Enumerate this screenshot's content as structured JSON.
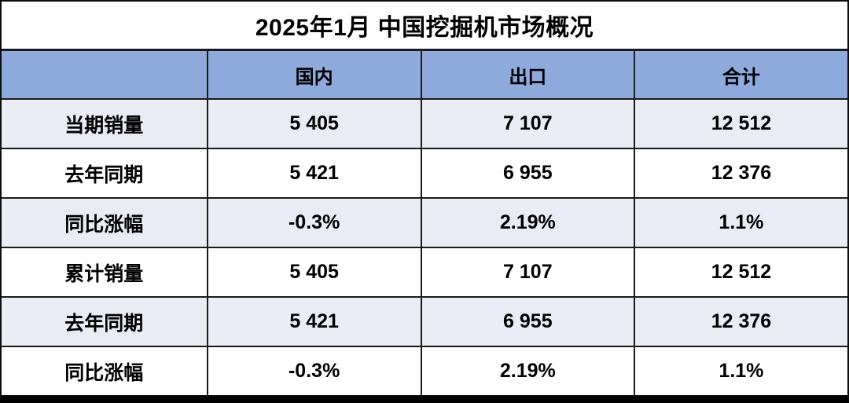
{
  "title": "2025年1月 中国挖掘机市场概况",
  "colors": {
    "header_bg": "#8EA9DB",
    "alt_row_bg": "#E9EBF5",
    "row_bg": "#FFFFFF",
    "border": "#1A1A1A",
    "text": "#000000"
  },
  "chart_data": {
    "type": "table",
    "title": "2025年1月 中国挖掘机市场概况",
    "columns": [
      "",
      "国内",
      "出口",
      "合计"
    ],
    "rows": [
      {
        "label": "当期销量",
        "values": [
          "5 405",
          "7 107",
          "12 512"
        ]
      },
      {
        "label": "去年同期",
        "values": [
          "5 421",
          "6 955",
          "12 376"
        ]
      },
      {
        "label": "同比涨幅",
        "values": [
          "-0.3%",
          "2.19%",
          "1.1%"
        ]
      },
      {
        "label": "累计销量",
        "values": [
          "5 405",
          "7 107",
          "12 512"
        ]
      },
      {
        "label": "去年同期",
        "values": [
          "5 421",
          "6 955",
          "12 376"
        ]
      },
      {
        "label": "同比涨幅",
        "values": [
          "-0.3%",
          "2.19%",
          "1.1%"
        ]
      }
    ]
  }
}
